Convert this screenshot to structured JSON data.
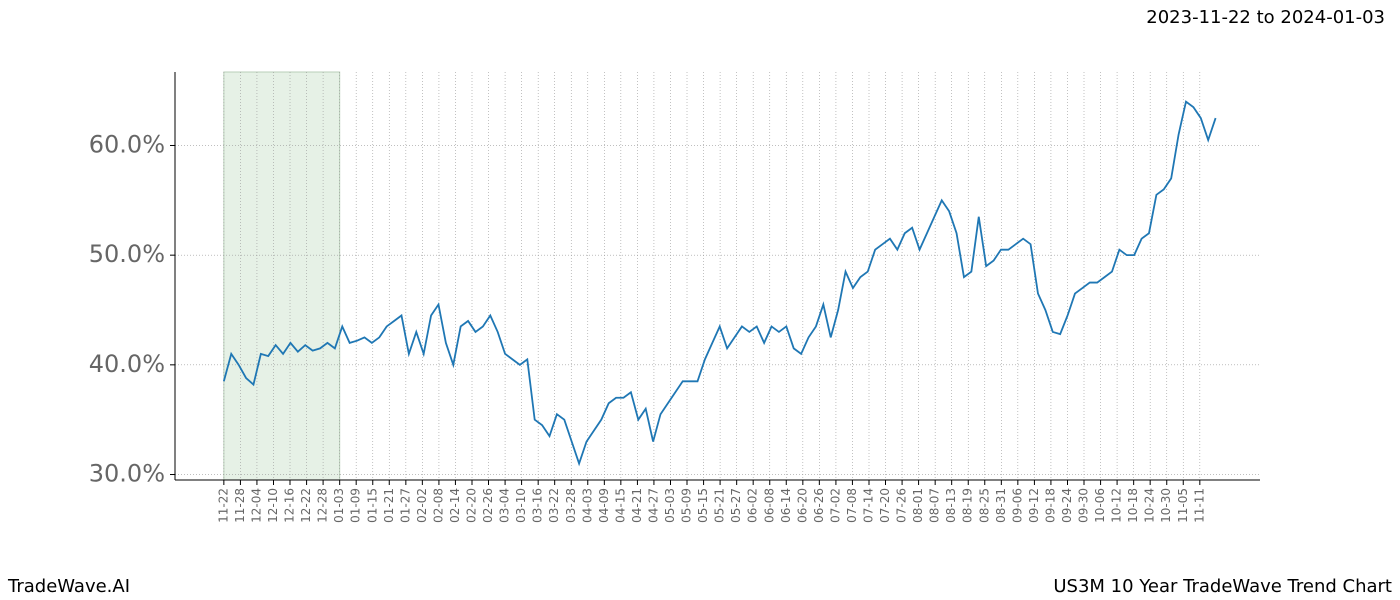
{
  "header": {
    "date_range": "2023-11-22 to 2024-01-03"
  },
  "footer": {
    "left": "TradeWave.AI",
    "right": "US3M 10 Year TradeWave Trend Chart"
  },
  "chart_data": {
    "type": "line",
    "color": "#1f77b4",
    "grid": true,
    "shade_color": "#e6f1e6",
    "shaded_xrange": [
      0,
      15.65
    ],
    "xlim": [
      -6.6,
      140
    ],
    "ylim": [
      29.5,
      66.7
    ],
    "yticks": [
      {
        "value": 30,
        "label": "30.0%"
      },
      {
        "value": 40,
        "label": "40.0%"
      },
      {
        "value": 50,
        "label": "50.0%"
      },
      {
        "value": 60,
        "label": "60.0%"
      }
    ],
    "xticks": [
      {
        "value": 0,
        "label": "11-22"
      },
      {
        "value": 2.24,
        "label": "11-28"
      },
      {
        "value": 4.47,
        "label": "12-04"
      },
      {
        "value": 6.71,
        "label": "12-10"
      },
      {
        "value": 8.94,
        "label": "12-16"
      },
      {
        "value": 11.18,
        "label": "12-22"
      },
      {
        "value": 13.41,
        "label": "12-28"
      },
      {
        "value": 15.65,
        "label": "01-03"
      },
      {
        "value": 17.88,
        "label": "01-09"
      },
      {
        "value": 20.12,
        "label": "01-15"
      },
      {
        "value": 22.35,
        "label": "01-21"
      },
      {
        "value": 24.59,
        "label": "01-27"
      },
      {
        "value": 26.82,
        "label": "02-02"
      },
      {
        "value": 29.06,
        "label": "02-08"
      },
      {
        "value": 31.29,
        "label": "02-14"
      },
      {
        "value": 33.53,
        "label": "02-20"
      },
      {
        "value": 35.76,
        "label": "02-26"
      },
      {
        "value": 38.0,
        "label": "03-04"
      },
      {
        "value": 40.23,
        "label": "03-10"
      },
      {
        "value": 42.47,
        "label": "03-16"
      },
      {
        "value": 44.7,
        "label": "03-22"
      },
      {
        "value": 46.94,
        "label": "03-28"
      },
      {
        "value": 49.17,
        "label": "04-03"
      },
      {
        "value": 51.41,
        "label": "04-09"
      },
      {
        "value": 53.64,
        "label": "04-15"
      },
      {
        "value": 55.88,
        "label": "04-21"
      },
      {
        "value": 58.11,
        "label": "04-27"
      },
      {
        "value": 60.35,
        "label": "05-03"
      },
      {
        "value": 62.58,
        "label": "05-09"
      },
      {
        "value": 64.82,
        "label": "05-15"
      },
      {
        "value": 67.05,
        "label": "05-21"
      },
      {
        "value": 69.29,
        "label": "05-27"
      },
      {
        "value": 71.52,
        "label": "06-02"
      },
      {
        "value": 73.76,
        "label": "06-08"
      },
      {
        "value": 75.99,
        "label": "06-14"
      },
      {
        "value": 78.23,
        "label": "06-20"
      },
      {
        "value": 80.46,
        "label": "06-26"
      },
      {
        "value": 82.7,
        "label": "07-02"
      },
      {
        "value": 84.93,
        "label": "07-08"
      },
      {
        "value": 87.17,
        "label": "07-14"
      },
      {
        "value": 89.4,
        "label": "07-20"
      },
      {
        "value": 91.64,
        "label": "07-26"
      },
      {
        "value": 93.87,
        "label": "08-01"
      },
      {
        "value": 96.11,
        "label": "08-07"
      },
      {
        "value": 98.34,
        "label": "08-13"
      },
      {
        "value": 100.58,
        "label": "08-19"
      },
      {
        "value": 102.81,
        "label": "08-25"
      },
      {
        "value": 105.05,
        "label": "08-31"
      },
      {
        "value": 107.28,
        "label": "09-06"
      },
      {
        "value": 109.52,
        "label": "09-12"
      },
      {
        "value": 111.75,
        "label": "09-18"
      },
      {
        "value": 113.99,
        "label": "09-24"
      },
      {
        "value": 116.22,
        "label": "09-30"
      },
      {
        "value": 118.46,
        "label": "10-06"
      },
      {
        "value": 120.69,
        "label": "10-12"
      },
      {
        "value": 122.93,
        "label": "10-18"
      },
      {
        "value": 125.16,
        "label": "10-24"
      },
      {
        "value": 127.4,
        "label": "10-30"
      },
      {
        "value": 129.63,
        "label": "11-05"
      },
      {
        "value": 131.87,
        "label": "11-11"
      }
    ],
    "values": [
      38.5,
      41.0,
      40.0,
      38.8,
      38.2,
      41.0,
      40.8,
      41.8,
      41.0,
      42.0,
      41.2,
      41.8,
      41.3,
      41.5,
      42.0,
      41.5,
      43.5,
      42.0,
      42.2,
      42.5,
      42.0,
      42.5,
      43.5,
      44.0,
      44.5,
      41.0,
      43.0,
      41.0,
      44.5,
      45.5,
      42.0,
      40.0,
      43.5,
      44.0,
      43.0,
      43.5,
      44.5,
      43.0,
      41.0,
      40.5,
      40.0,
      40.5,
      35.0,
      34.5,
      33.5,
      35.5,
      35.0,
      33.0,
      31.0,
      33.0,
      34.0,
      35.0,
      36.5,
      37.0,
      37.0,
      37.5,
      35.0,
      36.0,
      33.0,
      35.5,
      36.5,
      37.5,
      38.5,
      38.5,
      38.5,
      40.5,
      42.0,
      43.5,
      41.5,
      42.5,
      43.5,
      43.0,
      43.5,
      42.0,
      43.5,
      43.0,
      43.5,
      41.5,
      41.0,
      42.5,
      43.5,
      45.5,
      42.5,
      45.0,
      48.5,
      47.0,
      48.0,
      48.5,
      50.5,
      51.0,
      51.5,
      50.5,
      52.0,
      52.5,
      50.5,
      52.0,
      53.5,
      55.0,
      54.0,
      52.0,
      48.0,
      48.5,
      53.5,
      49.0,
      49.5,
      50.5,
      50.5,
      51.0,
      51.5,
      51.0,
      46.5,
      45.0,
      43.0,
      42.8,
      44.5,
      46.5,
      47.0,
      47.5,
      47.5,
      48.0,
      48.5,
      50.5,
      50.0,
      50.0,
      51.5,
      52.0,
      55.5,
      56.0,
      57.0,
      61.0,
      64.0,
      63.5,
      62.5,
      60.5,
      62.5
    ]
  }
}
